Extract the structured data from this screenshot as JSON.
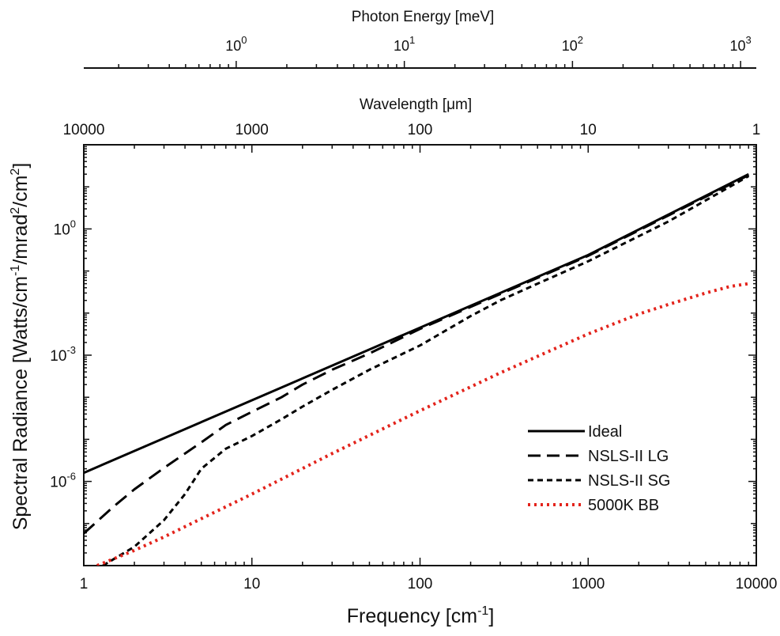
{
  "chart_data": {
    "type": "line",
    "xlabel": "Frequency [cm",
    "xlabel_sup": "-1",
    "xlabel_end": "]",
    "ylabel": "Spectral Radiance [Watts/cm",
    "ylabel_sup1": "-1",
    "ylabel_mid": "/mrad",
    "ylabel_sup2": "2",
    "ylabel_mid2": "/cm",
    "ylabel_sup3": "2",
    "ylabel_end": "]",
    "x_scale": "log",
    "y_scale": "log",
    "xlim": [
      1,
      10000
    ],
    "ylim": [
      1e-08,
      100
    ],
    "x_ticks": [
      {
        "value": 1,
        "label": "1"
      },
      {
        "value": 10,
        "label": "10"
      },
      {
        "value": 100,
        "label": "100"
      },
      {
        "value": 1000,
        "label": "1000"
      },
      {
        "value": 10000,
        "label": "10000"
      }
    ],
    "y_ticks": [
      {
        "value": 1,
        "base": "10",
        "exp": "0"
      },
      {
        "value": 0.001,
        "base": "10",
        "exp": "-3"
      },
      {
        "value": 1e-06,
        "base": "10",
        "exp": "-6"
      }
    ],
    "top_axis_wavelength": {
      "label": "Wavelength [",
      "label_unit": "μm",
      "label_end": "]",
      "ticks": [
        {
          "frequency": 1,
          "label": "10000"
        },
        {
          "frequency": 10,
          "label": "1000"
        },
        {
          "frequency": 100,
          "label": "100"
        },
        {
          "frequency": 1000,
          "label": "10"
        },
        {
          "frequency": 10000,
          "label": "1"
        }
      ]
    },
    "top_axis_energy": {
      "label": "Photon Energy [meV]",
      "ticks": [
        {
          "frequency": 8.0655,
          "base": "10",
          "exp": "0"
        },
        {
          "frequency": 80.655,
          "base": "10",
          "exp": "1"
        },
        {
          "frequency": 806.55,
          "base": "10",
          "exp": "2"
        },
        {
          "frequency": 8065.5,
          "base": "10",
          "exp": "3"
        }
      ]
    },
    "legend_position": "lower-right",
    "series": [
      {
        "name": "Ideal",
        "style": "solid",
        "color": "#000000",
        "points": [
          [
            1,
            1.6e-06
          ],
          [
            10,
            8.5e-05
          ],
          [
            100,
            0.0045
          ],
          [
            1000,
            0.24
          ],
          [
            9000,
            20
          ]
        ]
      },
      {
        "name": "NSLS-II LG",
        "style": "dashed",
        "color": "#000000",
        "points": [
          [
            1,
            5.8e-08
          ],
          [
            1.5,
            2.5e-07
          ],
          [
            2,
            6.5e-07
          ],
          [
            3,
            2.1e-06
          ],
          [
            5,
            8.5e-06
          ],
          [
            7,
            2.2e-05
          ],
          [
            10,
            4.5e-05
          ],
          [
            15,
            0.0001
          ],
          [
            20,
            0.0002
          ],
          [
            30,
            0.00045
          ],
          [
            50,
            0.0011
          ],
          [
            100,
            0.0042
          ],
          [
            1000,
            0.23
          ],
          [
            9000,
            19
          ]
        ]
      },
      {
        "name": "NSLS-II SG",
        "style": "dotted-short",
        "color": "#000000",
        "points": [
          [
            1.3,
            1e-08
          ],
          [
            2,
            2.8e-08
          ],
          [
            3,
            1.2e-07
          ],
          [
            4,
            5e-07
          ],
          [
            5,
            2e-06
          ],
          [
            7,
            6e-06
          ],
          [
            10,
            1.2e-05
          ],
          [
            15,
            3e-05
          ],
          [
            20,
            6e-05
          ],
          [
            30,
            0.00015
          ],
          [
            50,
            0.00045
          ],
          [
            100,
            0.0017
          ],
          [
            200,
            0.0085
          ],
          [
            300,
            0.02
          ],
          [
            500,
            0.05
          ],
          [
            1000,
            0.17
          ],
          [
            3000,
            1.5
          ],
          [
            9000,
            18
          ]
        ]
      },
      {
        "name": "5000K BB",
        "style": "dotted",
        "color": "#e3231b",
        "points": [
          [
            1.2,
            1e-08
          ],
          [
            2,
            2.3e-08
          ],
          [
            3,
            4.8e-08
          ],
          [
            5,
            1.3e-07
          ],
          [
            10,
            5e-07
          ],
          [
            30,
            4.6e-06
          ],
          [
            100,
            4.8e-05
          ],
          [
            300,
            0.00038
          ],
          [
            1000,
            0.0032
          ],
          [
            2000,
            0.0095
          ],
          [
            3000,
            0.016
          ],
          [
            5000,
            0.03
          ],
          [
            7000,
            0.043
          ],
          [
            9000,
            0.05
          ]
        ]
      }
    ]
  }
}
